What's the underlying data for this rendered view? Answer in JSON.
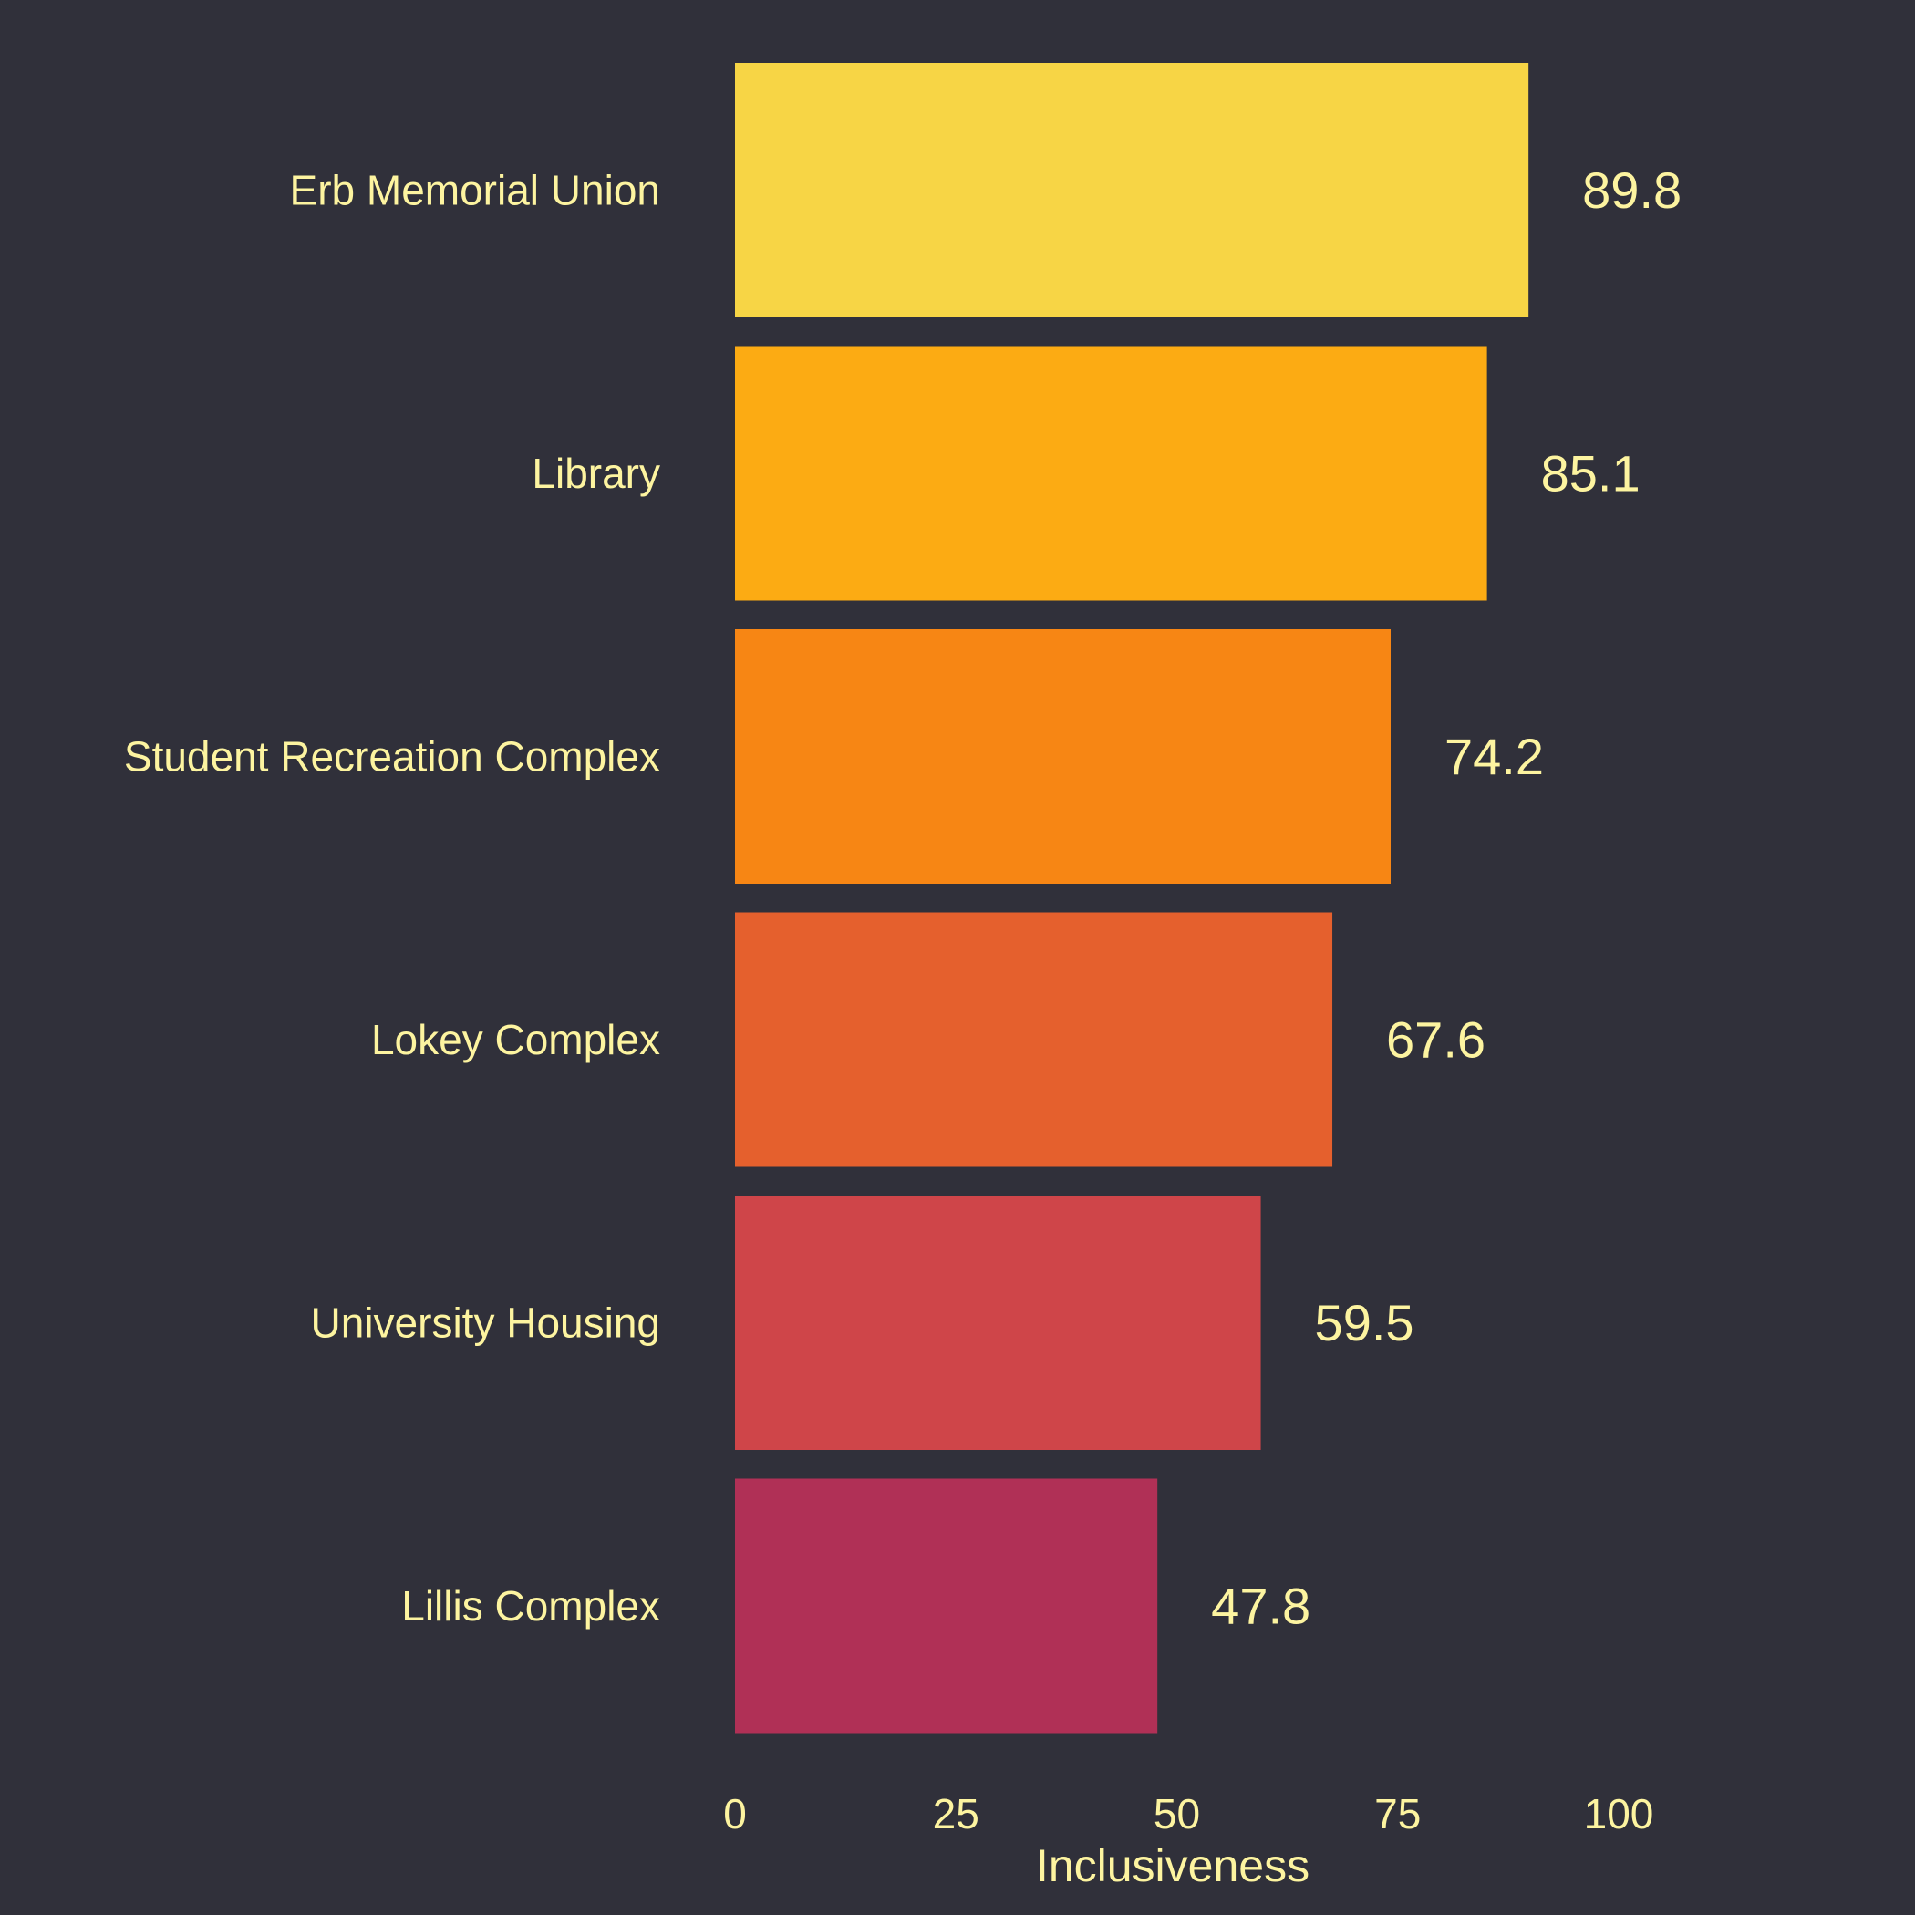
{
  "chart_data": {
    "type": "bar",
    "orientation": "horizontal",
    "categories": [
      "Erb Memorial Union",
      "Library",
      "Student Recreation Complex",
      "Lokey Complex",
      "University Housing",
      "Lillis Complex"
    ],
    "values": [
      89.8,
      85.1,
      74.2,
      67.6,
      59.5,
      47.8
    ],
    "value_labels": [
      "89.8",
      "85.1",
      "74.2",
      "67.6",
      "59.5",
      "47.8"
    ],
    "colors": [
      "#f7d545",
      "#fcab13",
      "#f78614",
      "#e5602d",
      "#cf4549",
      "#b03056"
    ],
    "xlabel": "Inclusiveness",
    "ylabel": "",
    "title": "",
    "xlim": [
      0,
      100
    ],
    "xticks": [
      0,
      25,
      50,
      75,
      100
    ],
    "xtick_labels": [
      "0",
      "25",
      "50",
      "75",
      "100"
    ],
    "grid": false,
    "legend": "none",
    "background_color": "#30303a",
    "text_color": "#fdf4a0"
  }
}
